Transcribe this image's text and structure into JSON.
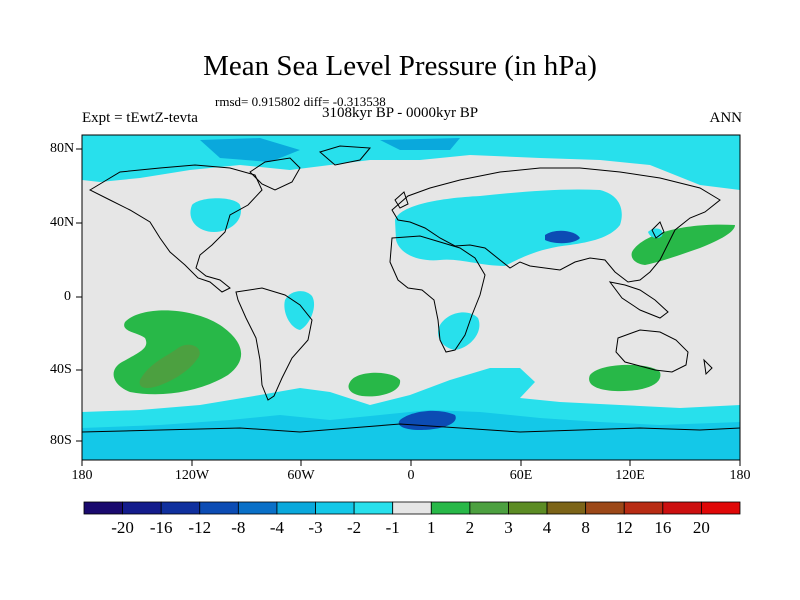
{
  "title": "Mean Sea Level Pressure (in hPa)",
  "stats": "rmsd= 0.915802 diff= -0.313538",
  "experiment": "Expt = tEwtZ-tevta",
  "period": "3108kyr BP - 0000kyr BP",
  "season": "ANN",
  "lat_labels": [
    "80N",
    "40N",
    "0",
    "40S",
    "80S"
  ],
  "lon_labels": [
    "180",
    "120W",
    "60W",
    "0",
    "60E",
    "120E",
    "180"
  ],
  "colorbar": {
    "labels": [
      "-20",
      "-16",
      "-12",
      "-8",
      "-4",
      "-3",
      "-2",
      "-1",
      "1",
      "2",
      "3",
      "4",
      "8",
      "12",
      "16",
      "20"
    ],
    "colors": [
      "#1a0a6e",
      "#141c8c",
      "#10309e",
      "#0c4cb4",
      "#0a70c8",
      "#0aa8dc",
      "#14c8e8",
      "#28e0ec",
      "#e6e6e6",
      "#28b848",
      "#4ca040",
      "#5c8c24",
      "#7c6418",
      "#9c4818",
      "#b82c14",
      "#cc1010",
      "#e00808"
    ]
  },
  "map_colors": {
    "background": "#e6e6e6",
    "light_cyan": "#28e0ec",
    "mid_cyan": "#14c8e8",
    "blue": "#0aa8dc",
    "dark_blue": "#0c4cb4",
    "green": "#28b848",
    "olive": "#4ca040",
    "coast": "#000000"
  }
}
